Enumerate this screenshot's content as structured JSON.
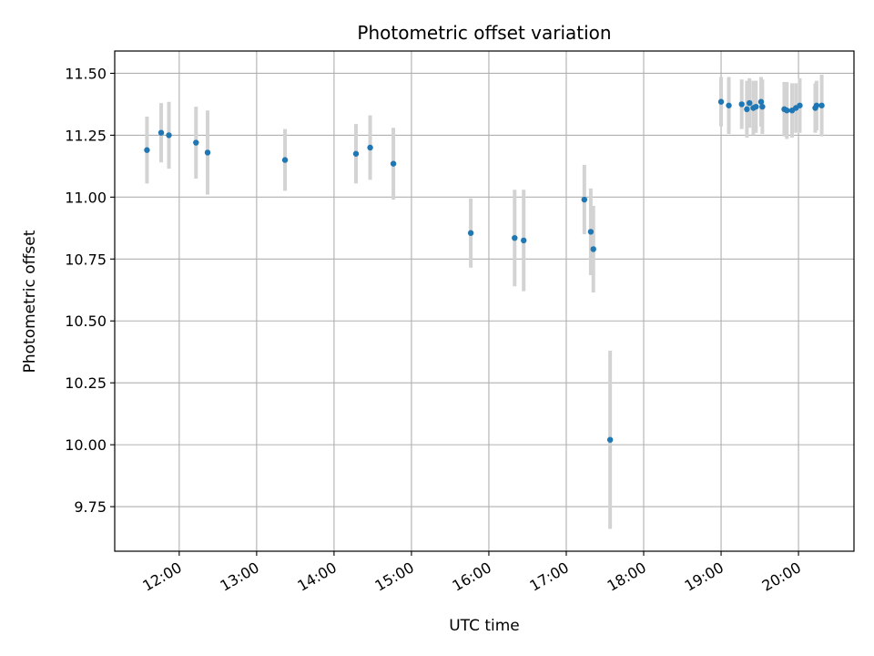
{
  "chart_data": {
    "type": "scatter",
    "title": "Photometric offset variation",
    "xlabel": "UTC time",
    "ylabel": "Photometric offset",
    "x_unit": "UTC time (hours)",
    "xlim": [
      "11:10",
      "20:43"
    ],
    "ylim": [
      9.57,
      11.59
    ],
    "x_ticks": [
      "12:00",
      "13:00",
      "14:00",
      "15:00",
      "16:00",
      "17:00",
      "18:00",
      "19:00",
      "20:00"
    ],
    "y_ticks": [
      "9.75",
      "10.00",
      "10.25",
      "10.50",
      "10.75",
      "11.00",
      "11.25",
      "11.50"
    ],
    "grid": true,
    "point_color": "#1f77b4",
    "errorbar_color": "#d3d3d3",
    "series": [
      {
        "points": [
          {
            "t": "11:35",
            "y": 11.19,
            "err": 0.135
          },
          {
            "t": "11:46",
            "y": 11.26,
            "err": 0.12
          },
          {
            "t": "11:52",
            "y": 11.25,
            "err": 0.135
          },
          {
            "t": "12:13",
            "y": 11.22,
            "err": 0.145
          },
          {
            "t": "12:22",
            "y": 11.18,
            "err": 0.17
          },
          {
            "t": "13:22",
            "y": 11.15,
            "err": 0.125
          },
          {
            "t": "14:17",
            "y": 11.175,
            "err": 0.12
          },
          {
            "t": "14:28",
            "y": 11.2,
            "err": 0.13
          },
          {
            "t": "14:46",
            "y": 11.135,
            "err": 0.145
          },
          {
            "t": "15:46",
            "y": 10.855,
            "err": 0.14
          },
          {
            "t": "16:20",
            "y": 10.835,
            "err": 0.195
          },
          {
            "t": "16:27",
            "y": 10.825,
            "err": 0.205
          },
          {
            "t": "17:14",
            "y": 10.99,
            "err": 0.14
          },
          {
            "t": "17:19",
            "y": 10.86,
            "err": 0.175
          },
          {
            "t": "17:21",
            "y": 10.79,
            "err": 0.175
          },
          {
            "t": "17:34",
            "y": 10.02,
            "err": 0.36
          },
          {
            "t": "19:00",
            "y": 11.385,
            "err": 0.1
          },
          {
            "t": "19:06",
            "y": 11.37,
            "err": 0.115
          },
          {
            "t": "19:16",
            "y": 11.375,
            "err": 0.1
          },
          {
            "t": "19:20",
            "y": 11.355,
            "err": 0.115
          },
          {
            "t": "19:22",
            "y": 11.38,
            "err": 0.1
          },
          {
            "t": "19:25",
            "y": 11.36,
            "err": 0.11
          },
          {
            "t": "19:27",
            "y": 11.365,
            "err": 0.105
          },
          {
            "t": "19:31",
            "y": 11.385,
            "err": 0.1
          },
          {
            "t": "19:32",
            "y": 11.365,
            "err": 0.11
          },
          {
            "t": "19:49",
            "y": 11.355,
            "err": 0.11
          },
          {
            "t": "19:51",
            "y": 11.35,
            "err": 0.115
          },
          {
            "t": "19:55",
            "y": 11.35,
            "err": 0.11
          },
          {
            "t": "19:58",
            "y": 11.36,
            "err": 0.1
          },
          {
            "t": "20:01",
            "y": 11.37,
            "err": 0.11
          },
          {
            "t": "20:13",
            "y": 11.36,
            "err": 0.1
          },
          {
            "t": "20:14",
            "y": 11.37,
            "err": 0.1
          },
          {
            "t": "20:18",
            "y": 11.37,
            "err": 0.125
          }
        ]
      }
    ]
  }
}
